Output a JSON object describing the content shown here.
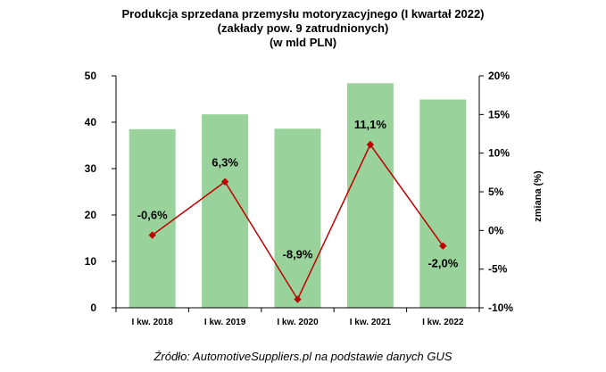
{
  "title": {
    "line1": "Produkcja sprzedana przemysłu motoryzacyjnego (I kwartał 2022)",
    "line2": "(zakłady pow. 9 zatrudnionych)",
    "line3": "(w mld PLN)"
  },
  "source": "Źródło: AutomotiveSuppliers.pl na podstawie danych GUS",
  "chart_data": {
    "type": "bar",
    "categories": [
      "I kw. 2018",
      "I kw. 2019",
      "I kw. 2020",
      "I kw. 2021",
      "I kw. 2022"
    ],
    "series": [
      {
        "type": "bar",
        "axis": "left",
        "color": "#99d39b",
        "values": [
          38.5,
          41.7,
          38.6,
          48.4,
          44.9
        ]
      },
      {
        "type": "line",
        "axis": "right",
        "color": "#c00000",
        "values": [
          -0.6,
          6.3,
          -8.9,
          11.1,
          -2.0
        ],
        "labels": [
          "-0,6%",
          "6,3%",
          "-8,9%",
          "11,1%",
          "-2,0%"
        ]
      }
    ],
    "left_axis": {
      "ylim": [
        0,
        50
      ],
      "ticks": [
        "0",
        "10",
        "20",
        "30",
        "40",
        "50"
      ]
    },
    "right_axis": {
      "ylim": [
        -10,
        20
      ],
      "ylabel": "zmiana (%)",
      "ticks": [
        "-10%",
        "-5%",
        "0%",
        "5%",
        "10%",
        "15%",
        "20%"
      ]
    },
    "grid": false,
    "legend": "none"
  }
}
